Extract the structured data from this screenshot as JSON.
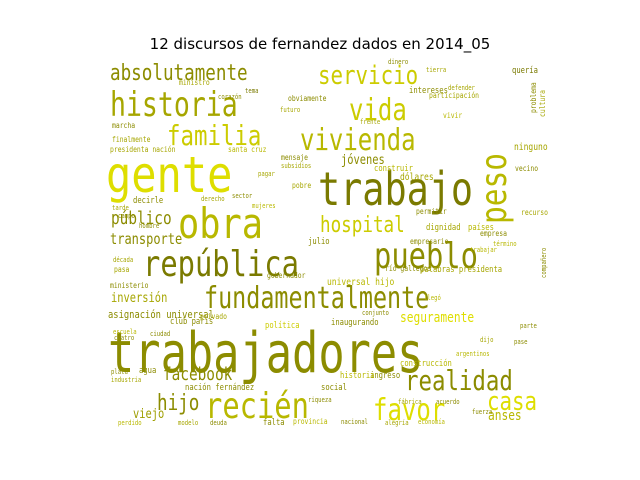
{
  "title": "12 discursos de fernandez dados en 2014_05",
  "colors": {
    "background": "#ffffff",
    "title": "#000000",
    "palette": [
      "#8c8c00",
      "#a6a600",
      "#b8b800",
      "#cccc00",
      "#dede00",
      "#e8e800",
      "#7a7a00",
      "#9e9e00"
    ]
  },
  "words": [
    {
      "text": "trabajadores",
      "color": "#8c8c00"
    },
    {
      "text": "trabajo",
      "color": "#7a7a00"
    },
    {
      "text": "gente",
      "color": "#dede00"
    },
    {
      "text": "obra",
      "color": "#b8b800"
    },
    {
      "text": "historia",
      "color": "#a6a600"
    },
    {
      "text": "república",
      "color": "#7a7a00"
    },
    {
      "text": "fundamentalmente",
      "color": "#8c8c00"
    },
    {
      "text": "pueblo",
      "color": "#8c8c00"
    },
    {
      "text": "peso",
      "color": "#b8b800"
    },
    {
      "text": "vivienda",
      "color": "#b8b800"
    },
    {
      "text": "vida",
      "color": "#cccc00"
    },
    {
      "text": "servicio",
      "color": "#cccc00"
    },
    {
      "text": "absolutamente",
      "color": "#8c8c00"
    },
    {
      "text": "familia",
      "color": "#cccc00"
    },
    {
      "text": "recién",
      "color": "#b8b800"
    },
    {
      "text": "favor",
      "color": "#dede00"
    },
    {
      "text": "realidad",
      "color": "#8c8c00"
    },
    {
      "text": "hospital",
      "color": "#cccc00"
    },
    {
      "text": "casa",
      "color": "#dede00"
    },
    {
      "text": "facebook",
      "color": "#8c8c00"
    },
    {
      "text": "hijo",
      "color": "#8c8c00"
    },
    {
      "text": "público",
      "color": "#8c8c00"
    },
    {
      "text": "transporte",
      "color": "#8c8c00"
    },
    {
      "text": "inversión",
      "color": "#a6a600"
    },
    {
      "text": "seguramente",
      "color": "#dede00"
    },
    {
      "text": "jóvenes",
      "color": "#8c8c00"
    },
    {
      "text": "anses",
      "color": "#b8b800"
    },
    {
      "text": "viejo",
      "color": "#9e9e00"
    },
    {
      "text": "asignación universal",
      "color": "#8c8c00"
    },
    {
      "text": "intereses",
      "color": "#8c8c00"
    },
    {
      "text": "obviamente",
      "color": "#8c8c00"
    },
    {
      "text": "ministro",
      "color": "#a6a600"
    },
    {
      "text": "marcha",
      "color": "#8c8c00"
    },
    {
      "text": "presidenta nación",
      "color": "#a6a600"
    },
    {
      "text": "finalmente",
      "color": "#a6a600"
    },
    {
      "text": "tema",
      "color": "#7a7a00"
    },
    {
      "text": "dólares",
      "color": "#a6a600"
    },
    {
      "text": "construir",
      "color": "#b8b800"
    },
    {
      "text": "participación",
      "color": "#a6a600"
    },
    {
      "text": "vivir",
      "color": "#b8b800"
    },
    {
      "text": "problema",
      "color": "#8c8c00"
    },
    {
      "text": "cultura",
      "color": "#a6a600"
    },
    {
      "text": "ninguno",
      "color": "#a6a600"
    },
    {
      "text": "vecino",
      "color": "#8c8c00"
    },
    {
      "text": "quería",
      "color": "#7a7a00"
    },
    {
      "text": "mensaje",
      "color": "#8c8c00"
    },
    {
      "text": "subsidios",
      "color": "#a6a600"
    },
    {
      "text": "pobre",
      "color": "#a6a600"
    },
    {
      "text": "decirle",
      "color": "#8c8c00"
    },
    {
      "text": "gobernador",
      "color": "#8c8c00"
    },
    {
      "text": "río gallegos",
      "color": "#8c8c00"
    },
    {
      "text": "universal hijo",
      "color": "#b8b800"
    },
    {
      "text": "empresario",
      "color": "#8c8c00"
    },
    {
      "text": "palabras presidenta",
      "color": "#a6a600"
    },
    {
      "text": "dignidad",
      "color": "#a6a600"
    },
    {
      "text": "países",
      "color": "#b8b800"
    },
    {
      "text": "empresa",
      "color": "#8c8c00"
    },
    {
      "text": "permitir",
      "color": "#8c8c00"
    },
    {
      "text": "recurso",
      "color": "#a6a600"
    },
    {
      "text": "julio",
      "color": "#8c8c00"
    },
    {
      "text": "club parís",
      "color": "#8c8c00"
    },
    {
      "text": "inaugurando",
      "color": "#8c8c00"
    },
    {
      "text": "política",
      "color": "#cccc00"
    },
    {
      "text": "privado",
      "color": "#a6a600"
    },
    {
      "text": "nación fernández",
      "color": "#8c8c00"
    },
    {
      "text": "agua",
      "color": "#8c8c00"
    },
    {
      "text": "social",
      "color": "#8c8c00"
    },
    {
      "text": "ingreso",
      "color": "#8c8c00"
    },
    {
      "text": "historia",
      "color": "#b8b800"
    },
    {
      "text": "construcción",
      "color": "#b8b800"
    },
    {
      "text": "falta",
      "color": "#8c8c00"
    },
    {
      "text": "provincia",
      "color": "#b8b800"
    },
    {
      "text": "nacional",
      "color": "#8c8c00"
    },
    {
      "text": "alegría",
      "color": "#a6a600"
    },
    {
      "text": "economía",
      "color": "#b8b800"
    },
    {
      "text": "fuerza",
      "color": "#8c8c00"
    },
    {
      "text": "modelo",
      "color": "#a6a600"
    },
    {
      "text": "deuda",
      "color": "#8c8c00"
    },
    {
      "text": "perdido",
      "color": "#b8b800"
    },
    {
      "text": "pasa",
      "color": "#a6a600"
    },
    {
      "text": "ministerio",
      "color": "#8c8c00"
    },
    {
      "text": "mujeres",
      "color": "#b8b800"
    },
    {
      "text": "santa cruz",
      "color": "#b8b800"
    },
    {
      "text": "campo",
      "color": "#8c8c00"
    },
    {
      "text": "década",
      "color": "#a6a600"
    },
    {
      "text": "compañero",
      "color": "#8c8c00"
    },
    {
      "text": "pagar",
      "color": "#a6a600"
    },
    {
      "text": "sector",
      "color": "#8c8c00"
    },
    {
      "text": "tarde",
      "color": "#a6a600"
    },
    {
      "text": "hombre",
      "color": "#8c8c00"
    },
    {
      "text": "derecho",
      "color": "#a6a600"
    },
    {
      "text": "industria",
      "color": "#a6a600"
    },
    {
      "text": "plata",
      "color": "#8c8c00"
    },
    {
      "text": "escuela",
      "color": "#b8b800"
    },
    {
      "text": "cuatro",
      "color": "#8c8c00"
    },
    {
      "text": "corazón",
      "color": "#8c8c00"
    },
    {
      "text": "frente",
      "color": "#a6a600"
    },
    {
      "text": "futuro",
      "color": "#a6a600"
    },
    {
      "text": "trabajar",
      "color": "#b8b800"
    },
    {
      "text": "conjunto",
      "color": "#8c8c00"
    },
    {
      "text": "término",
      "color": "#b8b800"
    },
    {
      "text": "llegó",
      "color": "#b8b800"
    },
    {
      "text": "pase",
      "color": "#8c8c00"
    },
    {
      "text": "dijo",
      "color": "#a6a600"
    },
    {
      "text": "ciudad",
      "color": "#8c8c00"
    },
    {
      "text": "defender",
      "color": "#a6a600"
    },
    {
      "text": "dinero",
      "color": "#8c8c00"
    },
    {
      "text": "tierra",
      "color": "#a6a600"
    },
    {
      "text": "riqueza",
      "color": "#8c8c00"
    },
    {
      "text": "fábrica",
      "color": "#a6a600"
    },
    {
      "text": "acuerdo",
      "color": "#8c8c00"
    },
    {
      "text": "argentinos",
      "color": "#b8b800"
    },
    {
      "text": "parte",
      "color": "#8c8c00"
    }
  ]
}
